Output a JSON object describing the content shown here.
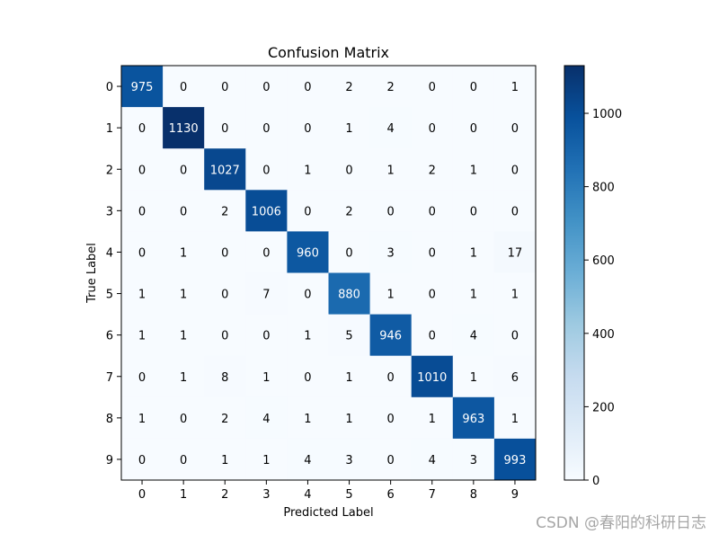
{
  "chart_data": {
    "type": "heatmap",
    "title": "Confusion Matrix",
    "xlabel": "Predicted Label",
    "ylabel": "True Label",
    "x_categories": [
      "0",
      "1",
      "2",
      "3",
      "4",
      "5",
      "6",
      "7",
      "8",
      "9"
    ],
    "y_categories": [
      "0",
      "1",
      "2",
      "3",
      "4",
      "5",
      "6",
      "7",
      "8",
      "9"
    ],
    "values": [
      [
        975,
        0,
        0,
        0,
        0,
        2,
        2,
        0,
        0,
        1
      ],
      [
        0,
        1130,
        0,
        0,
        0,
        1,
        4,
        0,
        0,
        0
      ],
      [
        0,
        0,
        1027,
        0,
        1,
        0,
        1,
        2,
        1,
        0
      ],
      [
        0,
        0,
        2,
        1006,
        0,
        2,
        0,
        0,
        0,
        0
      ],
      [
        0,
        1,
        0,
        0,
        960,
        0,
        3,
        0,
        1,
        17
      ],
      [
        1,
        1,
        0,
        7,
        0,
        880,
        1,
        0,
        1,
        1
      ],
      [
        1,
        1,
        0,
        0,
        1,
        5,
        946,
        0,
        4,
        0
      ],
      [
        0,
        1,
        8,
        1,
        0,
        1,
        0,
        1010,
        1,
        6
      ],
      [
        1,
        0,
        2,
        4,
        1,
        1,
        0,
        1,
        963,
        1
      ],
      [
        0,
        0,
        1,
        1,
        4,
        3,
        0,
        4,
        3,
        993
      ]
    ],
    "colormap": "Blues",
    "colorbar": {
      "range": [
        0,
        1130
      ],
      "ticks": [
        0,
        200,
        400,
        600,
        800,
        1000
      ]
    },
    "grid": false,
    "legend": "colorbar-right"
  },
  "watermark": "CSDN @春阳的科研日志"
}
